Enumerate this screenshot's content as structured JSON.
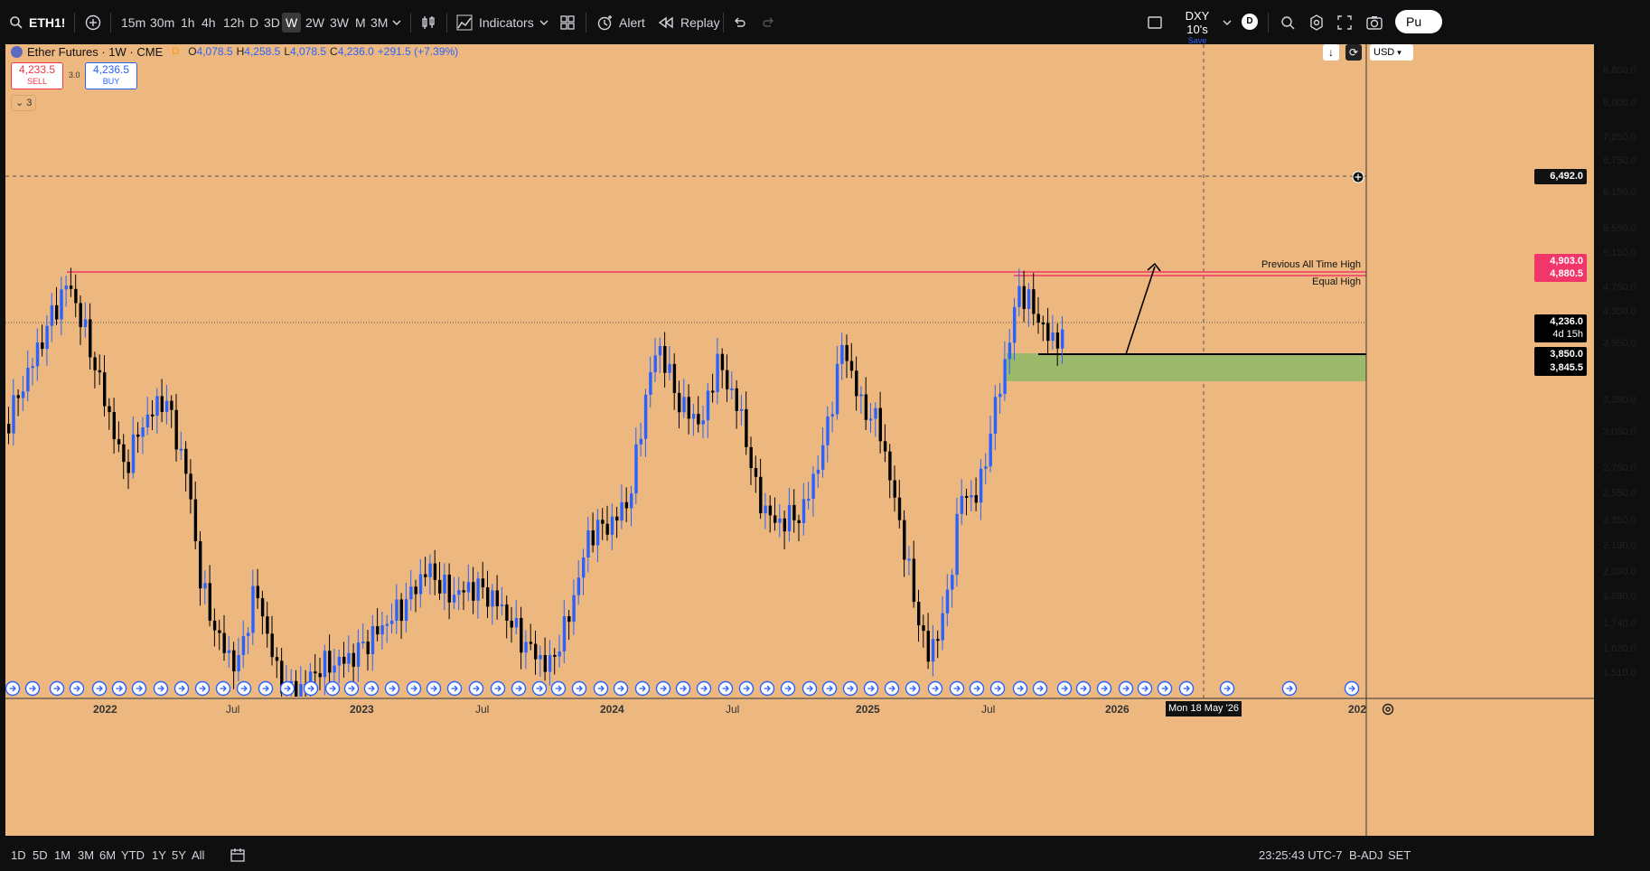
{
  "toolbar": {
    "symbol": "ETH1!",
    "timeframes": [
      "15m",
      "30m",
      "1h",
      "4h",
      "12h",
      "D",
      "3D",
      "W",
      "2W",
      "3W",
      "M",
      "3M"
    ],
    "active_timeframe": "W",
    "indicators_label": "Indicators",
    "alert_label": "Alert",
    "replay_label": "Replay",
    "layout_name": "DXY 10's",
    "layout_status": "Save",
    "avatar_letter": "D",
    "publish_label": "Pu"
  },
  "legend": {
    "title": "Ether Futures · 1W · CME",
    "badge": "D",
    "open_label": "O",
    "open": "4,078.5",
    "high_label": "H",
    "high": "4,258.5",
    "low_label": "L",
    "low": "4,078.5",
    "close_label": "C",
    "close": "4,236.0",
    "change": "+291.5 (+7.39%)",
    "sell_price": "4,233.5",
    "sell_label": "SELL",
    "spread": "3.0",
    "buy_price": "4,236.5",
    "buy_label": "BUY",
    "collapsed_count": "3"
  },
  "currency": "USD",
  "price_axis": [
    "8,800.0",
    "8,000.0",
    "7,250.0",
    "6,750.0",
    "6,150.0",
    "5,550.0",
    "5,150.0",
    "4,750.0",
    "4,350.0",
    "3,950.0",
    "3,350.0",
    "3,050.0",
    "2,750.0",
    "2,550.0",
    "2,350.0",
    "2,190.0",
    "2,030.0",
    "1,880.0",
    "1,740.0",
    "1,620.0",
    "1,510.0"
  ],
  "price_labels": {
    "crosshair": "6,492.0",
    "ath": "4,903.0",
    "equal_high": "4,880.5",
    "last": "4,236.0",
    "countdown": "4d 15h",
    "support_top": "3,850.0",
    "support_bottom": "3,845.5"
  },
  "annotations": {
    "prev_ath": "Previous All Time High",
    "equal_high": "Equal High"
  },
  "time_axis": [
    "2022",
    "Jul",
    "2023",
    "Jul",
    "2024",
    "Jul",
    "2025",
    "Jul",
    "2026",
    "202"
  ],
  "crosshair_date": "Mon 18 May '26",
  "bottom": {
    "ranges": [
      "1D",
      "5D",
      "1M",
      "3M",
      "6M",
      "YTD",
      "1Y",
      "5Y",
      "All"
    ],
    "clock": "23:25:43 UTC-7",
    "adj": "B-ADJ",
    "session": "SET"
  },
  "colors": {
    "chart_bg": "#ecb880",
    "up": "#2962ff",
    "down": "#000000",
    "ath_line": "#f23669",
    "zone": "#9cb86a"
  }
}
